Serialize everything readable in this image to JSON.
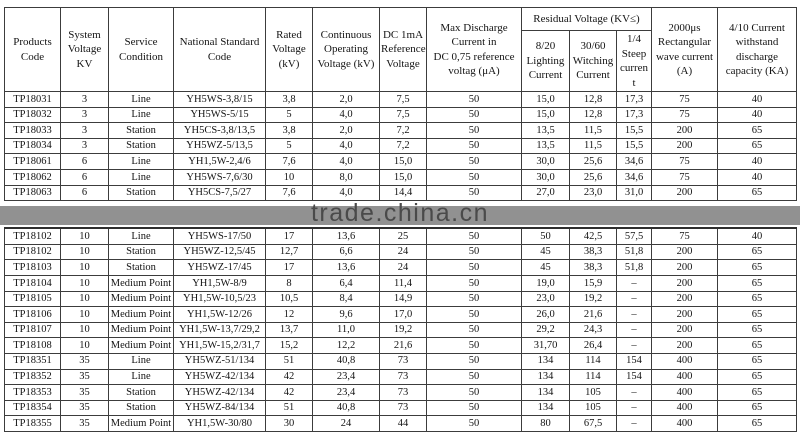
{
  "table": {
    "header": {
      "main": [
        "Products\nCode",
        "System\nVoltage\nKV",
        "Service\nCondition",
        "National Standard\nCode",
        "Rated\nVoltage\n(kV)",
        "Continuous\nOperating\nVoltage (kV)",
        "DC 1mA\nReference\nVoltage",
        "Max Discharge\nCurrent in\nDC 0,75 reference\nvoltag (μA)"
      ],
      "residual_group": "Residual Voltage  (KV≤)",
      "residual_sub": [
        "8/20\nLighting\nCurrent",
        "30/60\nWitching\nCurrent",
        "1/4\nSteep\ncurren\nt"
      ],
      "tail": [
        "2000μs\nRectangular\nwave current\n(A)",
        "4/10 Current\nwithstand\ndischarge\ncapacity (KA)"
      ]
    },
    "sections": [
      {
        "rows": [
          [
            "TP18031",
            "3",
            "Line",
            "YH5WS-3,8/15",
            "3,8",
            "2,0",
            "7,5",
            "50",
            "15,0",
            "12,8",
            "17,3",
            "75",
            "40"
          ],
          [
            "TP18032",
            "3",
            "Line",
            "YH5WS-5/15",
            "5",
            "4,0",
            "7,5",
            "50",
            "15,0",
            "12,8",
            "17,3",
            "75",
            "40"
          ],
          [
            "TP18033",
            "3",
            "Station",
            "YH5CS-3,8/13,5",
            "3,8",
            "2,0",
            "7,2",
            "50",
            "13,5",
            "11,5",
            "15,5",
            "200",
            "65"
          ],
          [
            "TP18034",
            "3",
            "Station",
            "YH5WZ-5/13,5",
            "5",
            "4,0",
            "7,2",
            "50",
            "13,5",
            "11,5",
            "15,5",
            "200",
            "65"
          ],
          [
            "TP18061",
            "6",
            "Line",
            "YH1,5W-2,4/6",
            "7,6",
            "4,0",
            "15,0",
            "50",
            "30,0",
            "25,6",
            "34,6",
            "75",
            "40"
          ],
          [
            "TP18062",
            "6",
            "Line",
            "YH5WS-7,6/30",
            "10",
            "8,0",
            "15,0",
            "50",
            "30,0",
            "25,6",
            "34,6",
            "75",
            "40"
          ],
          [
            "TP18063",
            "6",
            "Station",
            "YH5CS-7,5/27",
            "7,6",
            "4,0",
            "14,4",
            "50",
            "27,0",
            "23,0",
            "31,0",
            "200",
            "65"
          ]
        ]
      },
      {
        "rows": [
          [
            "TP18102",
            "10",
            "Line",
            "YH5WS-17/50",
            "17",
            "13,6",
            "25",
            "50",
            "50",
            "42,5",
            "57,5",
            "75",
            "40"
          ],
          [
            "TP18102",
            "10",
            "Station",
            "YH5WZ-12,5/45",
            "12,7",
            "6,6",
            "24",
            "50",
            "45",
            "38,3",
            "51,8",
            "200",
            "65"
          ],
          [
            "TP18103",
            "10",
            "Station",
            "YH5WZ-17/45",
            "17",
            "13,6",
            "24",
            "50",
            "45",
            "38,3",
            "51,8",
            "200",
            "65"
          ],
          [
            "TP18104",
            "10",
            "Medium Point",
            "YH1,5W-8/9",
            "8",
            "6,4",
            "11,4",
            "50",
            "19,0",
            "15,9",
            "–",
            "200",
            "65"
          ],
          [
            "TP18105",
            "10",
            "Medium Point",
            "YH1,5W-10,5/23",
            "10,5",
            "8,4",
            "14,9",
            "50",
            "23,0",
            "19,2",
            "–",
            "200",
            "65"
          ],
          [
            "TP18106",
            "10",
            "Medium Point",
            "YH1,5W-12/26",
            "12",
            "9,6",
            "17,0",
            "50",
            "26,0",
            "21,6",
            "–",
            "200",
            "65"
          ],
          [
            "TP18107",
            "10",
            "Medium Point",
            "YH1,5W-13,7/29,2",
            "13,7",
            "11,0",
            "19,2",
            "50",
            "29,2",
            "24,3",
            "–",
            "200",
            "65"
          ],
          [
            "TP18108",
            "10",
            "Medium Point",
            "YH1,5W-15,2/31,7",
            "15,2",
            "12,2",
            "21,6",
            "50",
            "31,70",
            "26,4",
            "–",
            "200",
            "65"
          ],
          [
            "TP18351",
            "35",
            "Line",
            "YH5WZ-51/134",
            "51",
            "40,8",
            "73",
            "50",
            "134",
            "114",
            "154",
            "400",
            "65"
          ],
          [
            "TP18352",
            "35",
            "Line",
            "YH5WZ-42/134",
            "42",
            "23,4",
            "73",
            "50",
            "134",
            "114",
            "154",
            "400",
            "65"
          ],
          [
            "TP18353",
            "35",
            "Station",
            "YH5WZ-42/134",
            "42",
            "23,4",
            "73",
            "50",
            "134",
            "105",
            "–",
            "400",
            "65"
          ],
          [
            "TP18354",
            "35",
            "Station",
            "YH5WZ-84/134",
            "51",
            "40,8",
            "73",
            "50",
            "134",
            "105",
            "–",
            "400",
            "65"
          ],
          [
            "TP18355",
            "35",
            "Medium Point",
            "YH1,5W-30/80",
            "30",
            "24",
            "44",
            "50",
            "80",
            "67,5",
            "–",
            "400",
            "65"
          ]
        ]
      }
    ]
  },
  "watermark": {
    "text": "trade.china.cn",
    "band_color": "#919191",
    "text_color": "#4a4a4a"
  }
}
